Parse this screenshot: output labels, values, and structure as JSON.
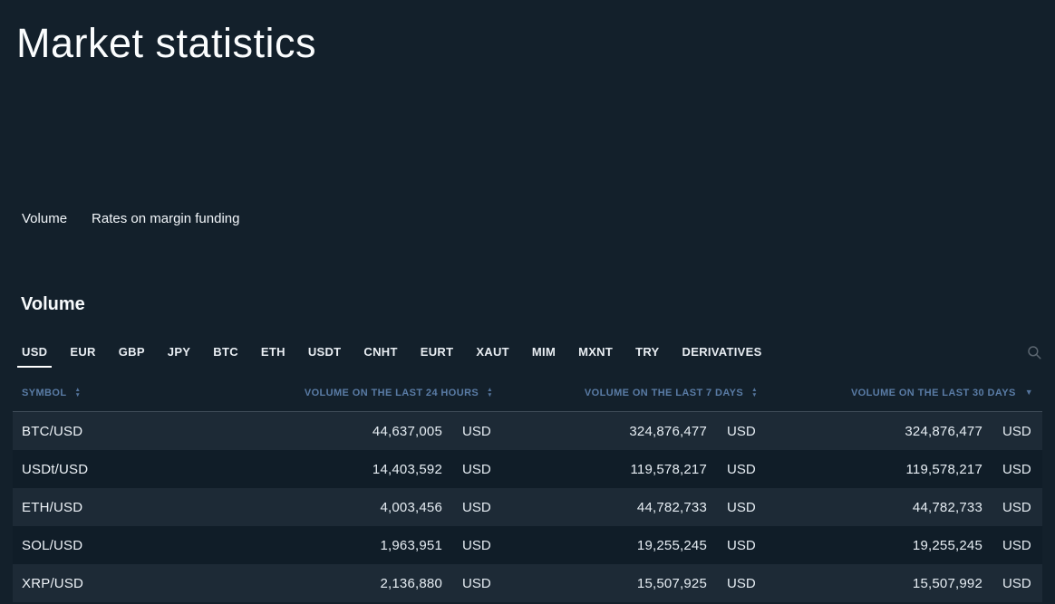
{
  "page": {
    "title": "Market statistics"
  },
  "nav_tabs": [
    {
      "label": "Volume",
      "active": true
    },
    {
      "label": "Rates on margin funding",
      "active": false
    }
  ],
  "section": {
    "title": "Volume"
  },
  "currency_tabs": {
    "items": [
      {
        "label": "USD",
        "active": true
      },
      {
        "label": "EUR",
        "active": false
      },
      {
        "label": "GBP",
        "active": false
      },
      {
        "label": "JPY",
        "active": false
      },
      {
        "label": "BTC",
        "active": false
      },
      {
        "label": "ETH",
        "active": false
      },
      {
        "label": "USDT",
        "active": false
      },
      {
        "label": "CNHT",
        "active": false
      },
      {
        "label": "EURT",
        "active": false
      },
      {
        "label": "XAUT",
        "active": false
      },
      {
        "label": "MIM",
        "active": false
      },
      {
        "label": "MXNT",
        "active": false
      },
      {
        "label": "TRY",
        "active": false
      },
      {
        "label": "DERIVATIVES",
        "active": false
      }
    ],
    "search_icon": "magnifier"
  },
  "table": {
    "columns": [
      {
        "label": "SYMBOL",
        "sort": "both"
      },
      {
        "label": "VOLUME ON THE LAST 24 HOURS",
        "sort": "both"
      },
      {
        "label": "VOLUME ON THE LAST 7 DAYS",
        "sort": "both"
      },
      {
        "label": "VOLUME ON THE LAST 30 DAYS",
        "sort": "desc"
      }
    ],
    "rows": [
      {
        "symbol": "BTC/USD",
        "vol_24h": "44,637,005",
        "vol_7d": "324,876,477",
        "vol_30d": "324,876,477",
        "unit": "USD"
      },
      {
        "symbol": "USDt/USD",
        "vol_24h": "14,403,592",
        "vol_7d": "119,578,217",
        "vol_30d": "119,578,217",
        "unit": "USD"
      },
      {
        "symbol": "ETH/USD",
        "vol_24h": "4,003,456",
        "vol_7d": "44,782,733",
        "vol_30d": "44,782,733",
        "unit": "USD"
      },
      {
        "symbol": "SOL/USD",
        "vol_24h": "1,963,951",
        "vol_7d": "19,255,245",
        "vol_30d": "19,255,245",
        "unit": "USD"
      },
      {
        "symbol": "XRP/USD",
        "vol_24h": "2,136,880",
        "vol_7d": "15,507,925",
        "vol_30d": "15,507,992",
        "unit": "USD"
      }
    ]
  },
  "colors": {
    "background": "#13202b",
    "row_odd": "#1d2a36",
    "row_even": "#101d28",
    "header_text": "#5a7ca6",
    "sort_icon": "#54749c",
    "divider": "#3e4b58",
    "text_primary": "#eef3f8",
    "active_tab_underline": "#ffffff",
    "search_icon": "#5b6670"
  }
}
